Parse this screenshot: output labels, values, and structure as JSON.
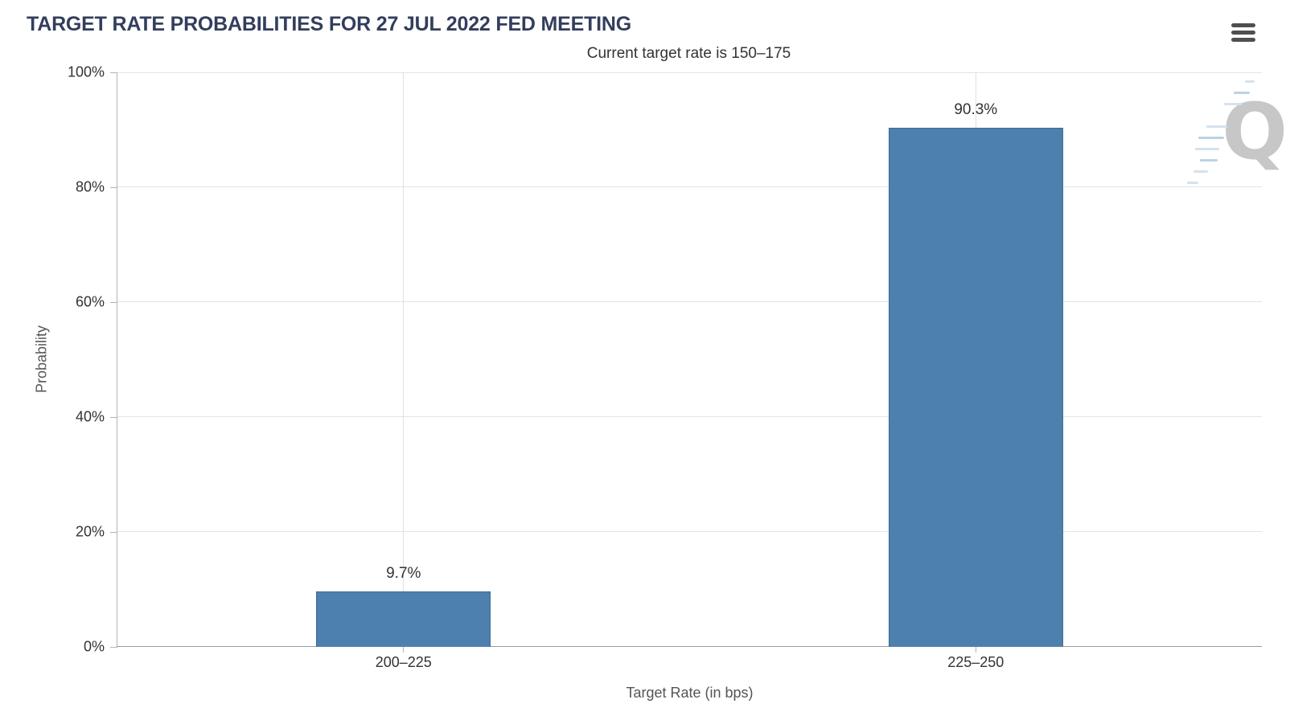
{
  "header": {
    "menu_icon": "hamburger-menu"
  },
  "watermark": {
    "letter": "Q"
  },
  "colors": {
    "title": "#333e5c",
    "bar_fill": "#4d80ad",
    "bar_border": "#3d6b96",
    "grid": "#e3e3e3",
    "axis_line": "#b3b3b3",
    "baseline": "#999999",
    "label_text": "#333333",
    "axis_title_text": "#555555"
  },
  "chart_data": {
    "type": "bar",
    "title": "TARGET RATE PROBABILITIES FOR 27 JUL 2022 FED MEETING",
    "subtitle": "Current target rate is 150–175",
    "categories": [
      "200–225",
      "225–250"
    ],
    "values": [
      9.7,
      90.3
    ],
    "value_labels": [
      "9.7%",
      "90.3%"
    ],
    "xlabel": "Target Rate (in bps)",
    "ylabel": "Probability",
    "ylim": [
      0,
      100
    ],
    "yticks": [
      0,
      20,
      40,
      60,
      80,
      100
    ],
    "ytick_labels": [
      "0%",
      "20%",
      "40%",
      "60%",
      "80%",
      "100%"
    ],
    "grid": true,
    "legend_position": "none"
  }
}
